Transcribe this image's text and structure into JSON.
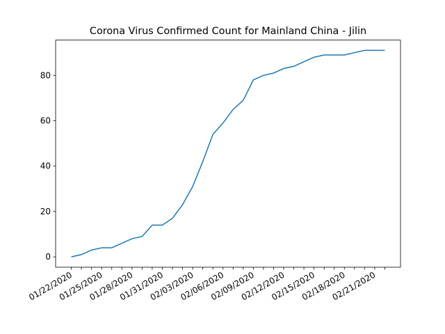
{
  "chart_data": {
    "type": "line",
    "title": "Corona Virus Confirmed Count for Mainland China - Jilin",
    "categories": [
      "01/22/2020",
      null,
      null,
      "01/25/2020",
      null,
      null,
      "01/28/2020",
      null,
      null,
      "01/31/2020",
      null,
      null,
      "02/03/2020",
      null,
      null,
      "02/06/2020",
      null,
      null,
      "02/09/2020",
      null,
      null,
      "02/12/2020",
      null,
      null,
      "02/15/2020",
      null,
      null,
      "02/18/2020",
      null,
      null,
      "02/21/2020",
      null
    ],
    "values": [
      0,
      1,
      3,
      4,
      4,
      6,
      8,
      9,
      14,
      14,
      17,
      23,
      31,
      42,
      54,
      59,
      65,
      69,
      78,
      80,
      81,
      83,
      84,
      86,
      88,
      89,
      89,
      89,
      90,
      91,
      91,
      91
    ],
    "color": "#1f77b4",
    "ylim": [
      -4.55,
      95.55
    ],
    "yticks": [
      0,
      20,
      40,
      60,
      80
    ]
  }
}
